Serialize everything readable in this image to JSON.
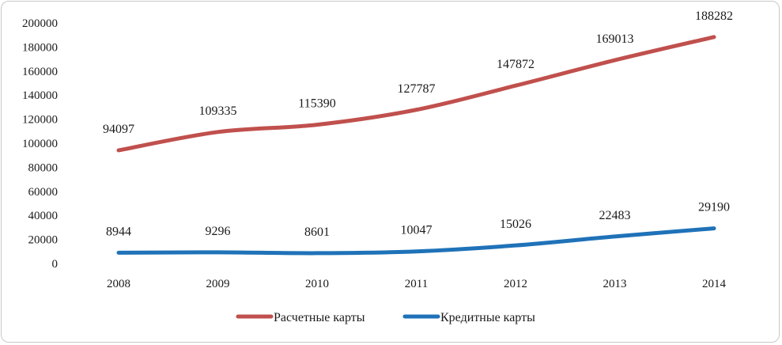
{
  "chart_data": {
    "type": "line",
    "title": "",
    "xlabel": "",
    "ylabel": "",
    "categories": [
      "2008",
      "2009",
      "2010",
      "2011",
      "2012",
      "2013",
      "2014"
    ],
    "ylim": [
      0,
      200000
    ],
    "yticks": [
      0,
      20000,
      40000,
      60000,
      80000,
      100000,
      120000,
      140000,
      160000,
      180000,
      200000
    ],
    "grid": false,
    "smooth": true,
    "legend_position": "bottom",
    "series": [
      {
        "name": "Расчетные карты",
        "color": "#c0504d",
        "values": [
          94097,
          109335,
          115390,
          127787,
          147872,
          169013,
          188282
        ]
      },
      {
        "name": "Кредитные карты",
        "color": "#1f72b8",
        "values": [
          8944,
          9296,
          8601,
          10047,
          15026,
          22483,
          29190
        ]
      }
    ]
  }
}
